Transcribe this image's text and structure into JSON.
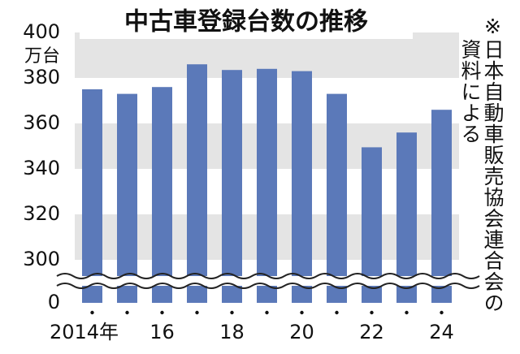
{
  "chart_data": {
    "type": "bar",
    "title": "中古車登録台数の推移",
    "y_unit": "万台",
    "note": [
      "※日本自動車販売協会連合会の",
      "資料による"
    ],
    "categories": [
      "2014年",
      null,
      "16",
      null,
      "18",
      null,
      "20",
      null,
      "22",
      null,
      "24"
    ],
    "values": [
      375,
      373,
      376,
      386,
      383.5,
      384,
      383,
      373,
      349.5,
      356,
      366
    ],
    "color": "#5b79b9",
    "stripe_color": "#e4e4e4",
    "ylim": [
      300,
      400
    ],
    "yticks": [
      0,
      300,
      320,
      340,
      360,
      380,
      400
    ],
    "axis_break": true,
    "stripes": true
  }
}
